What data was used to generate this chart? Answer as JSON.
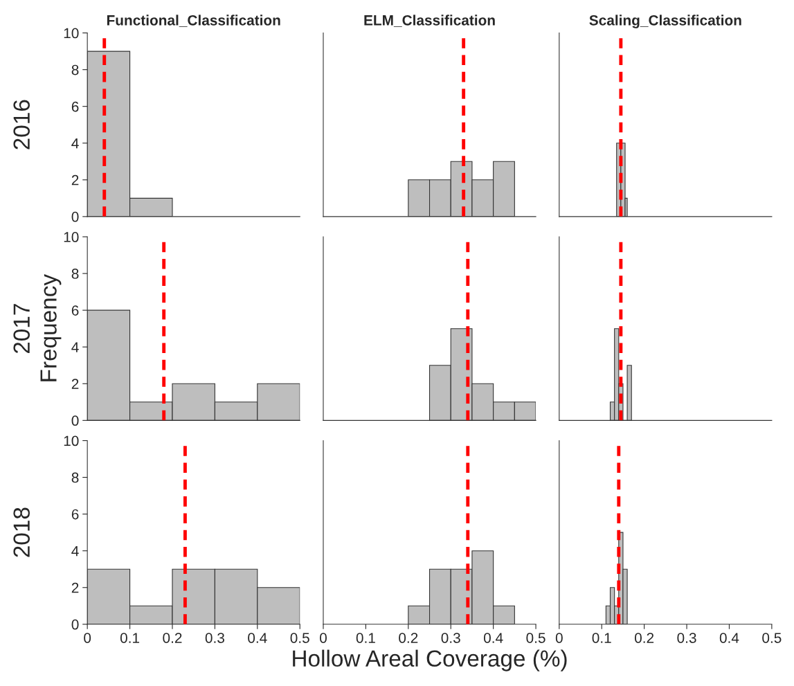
{
  "chart_data": [
    {
      "type": "histogram",
      "title": "Functional_Classification",
      "annotations": [
        "2016"
      ],
      "bins": [
        0,
        0.1,
        0.2
      ],
      "values": [
        9,
        1
      ],
      "color": "#bebebe",
      "xlim": [
        0,
        0.5
      ],
      "xticks": [
        0,
        0.1,
        0.2,
        0.3,
        0.4,
        0.5
      ],
      "ylim": [
        0,
        10
      ],
      "yticks": [
        0,
        2,
        4,
        6,
        8,
        10
      ],
      "tick_labels": "y",
      "ref_lines": [
        {
          "axis": "x",
          "value": 0.04,
          "color": "#ff0000",
          "line_style": "dashed"
        }
      ],
      "grid": false
    },
    {
      "type": "histogram",
      "title": "ELM_Classification",
      "bins": [
        0.2,
        0.25,
        0.3,
        0.35,
        0.4,
        0.45
      ],
      "values": [
        2,
        2,
        3,
        2,
        3
      ],
      "color": "#bebebe",
      "xlim": [
        0,
        0.5
      ],
      "xticks": [
        0,
        0.1,
        0.2,
        0.3,
        0.4,
        0.5
      ],
      "ylim": [
        0,
        10
      ],
      "yticks": [
        0,
        2,
        4,
        6,
        8,
        10
      ],
      "tick_labels": false,
      "ref_lines": [
        {
          "axis": "x",
          "value": 0.33,
          "color": "#ff0000",
          "line_style": "dashed"
        }
      ],
      "grid": false
    },
    {
      "type": "histogram",
      "title": "Scaling_Classification",
      "bins": [
        0.135,
        0.145,
        0.155,
        0.16
      ],
      "values": [
        4,
        4,
        1
      ],
      "color": "#bebebe",
      "xlim": [
        0,
        0.5
      ],
      "xticks": [
        0,
        0.1,
        0.2,
        0.3,
        0.4,
        0.5
      ],
      "ylim": [
        0,
        10
      ],
      "yticks": [
        0,
        2,
        4,
        6,
        8,
        10
      ],
      "tick_labels": false,
      "ref_lines": [
        {
          "axis": "x",
          "value": 0.145,
          "color": "#ff0000",
          "line_style": "dashed"
        }
      ],
      "grid": false
    },
    {
      "type": "histogram",
      "ylabel": "Frequency",
      "annotations": [
        "2017"
      ],
      "bins": [
        0,
        0.1,
        0.2,
        0.3,
        0.4,
        0.5
      ],
      "values": [
        6,
        1,
        2,
        1,
        2
      ],
      "color": "#bebebe",
      "xlim": [
        0,
        0.5
      ],
      "xticks": [
        0,
        0.1,
        0.2,
        0.3,
        0.4,
        0.5
      ],
      "ylim": [
        0,
        10
      ],
      "yticks": [
        0,
        2,
        4,
        6,
        8,
        10
      ],
      "tick_labels": "y",
      "ref_lines": [
        {
          "axis": "x",
          "value": 0.18,
          "color": "#ff0000",
          "line_style": "dashed"
        }
      ],
      "grid": false
    },
    {
      "type": "histogram",
      "bins": [
        0.25,
        0.3,
        0.35,
        0.4,
        0.45,
        0.5
      ],
      "values": [
        3,
        5,
        2,
        1,
        1
      ],
      "color": "#bebebe",
      "xlim": [
        0,
        0.5
      ],
      "xticks": [
        0,
        0.1,
        0.2,
        0.3,
        0.4,
        0.5
      ],
      "ylim": [
        0,
        10
      ],
      "yticks": [
        0,
        2,
        4,
        6,
        8,
        10
      ],
      "tick_labels": false,
      "ref_lines": [
        {
          "axis": "x",
          "value": 0.34,
          "color": "#ff0000",
          "line_style": "dashed"
        }
      ],
      "grid": false
    },
    {
      "type": "histogram",
      "bins": [
        0.12,
        0.13,
        0.14,
        0.15,
        0.16,
        0.17
      ],
      "values": [
        1,
        5,
        2,
        0,
        3
      ],
      "color": "#bebebe",
      "xlim": [
        0,
        0.5
      ],
      "xticks": [
        0,
        0.1,
        0.2,
        0.3,
        0.4,
        0.5
      ],
      "ylim": [
        0,
        10
      ],
      "yticks": [
        0,
        2,
        4,
        6,
        8,
        10
      ],
      "tick_labels": false,
      "ref_lines": [
        {
          "axis": "x",
          "value": 0.145,
          "color": "#ff0000",
          "line_style": "dashed"
        }
      ],
      "grid": false
    },
    {
      "type": "histogram",
      "annotations": [
        "2018"
      ],
      "bins": [
        0,
        0.1,
        0.2,
        0.3,
        0.4,
        0.5
      ],
      "values": [
        3,
        1,
        3,
        3,
        2
      ],
      "color": "#bebebe",
      "xlim": [
        0,
        0.5
      ],
      "xticks": [
        0,
        0.1,
        0.2,
        0.3,
        0.4,
        0.5
      ],
      "ylim": [
        0,
        10
      ],
      "yticks": [
        0,
        2,
        4,
        6,
        8,
        10
      ],
      "ref_lines": [
        {
          "axis": "x",
          "value": 0.23,
          "color": "#ff0000",
          "line_style": "dashed"
        }
      ],
      "grid": false
    },
    {
      "type": "histogram",
      "xlabel": "Hollow Areal Coverage (%)",
      "bins": [
        0.2,
        0.25,
        0.3,
        0.35,
        0.4,
        0.45
      ],
      "values": [
        1,
        3,
        3,
        4,
        1
      ],
      "color": "#bebebe",
      "xlim": [
        0,
        0.5
      ],
      "xticks": [
        0,
        0.1,
        0.2,
        0.3,
        0.4,
        0.5
      ],
      "ylim": [
        0,
        10
      ],
      "yticks": [
        0,
        2,
        4,
        6,
        8,
        10
      ],
      "tick_labels": "x",
      "ref_lines": [
        {
          "axis": "x",
          "value": 0.34,
          "color": "#ff0000",
          "line_style": "dashed"
        }
      ],
      "grid": false
    },
    {
      "type": "histogram",
      "bins": [
        0.11,
        0.12,
        0.13,
        0.14,
        0.15,
        0.16
      ],
      "values": [
        1,
        2,
        1,
        5,
        3
      ],
      "color": "#bebebe",
      "xlim": [
        0,
        0.5
      ],
      "xticks": [
        0,
        0.1,
        0.2,
        0.3,
        0.4,
        0.5
      ],
      "ylim": [
        0,
        10
      ],
      "yticks": [
        0,
        2,
        4,
        6,
        8,
        10
      ],
      "tick_labels": "x",
      "ref_lines": [
        {
          "axis": "x",
          "value": 0.14,
          "color": "#ff0000",
          "line_style": "dashed"
        }
      ],
      "grid": false
    }
  ]
}
